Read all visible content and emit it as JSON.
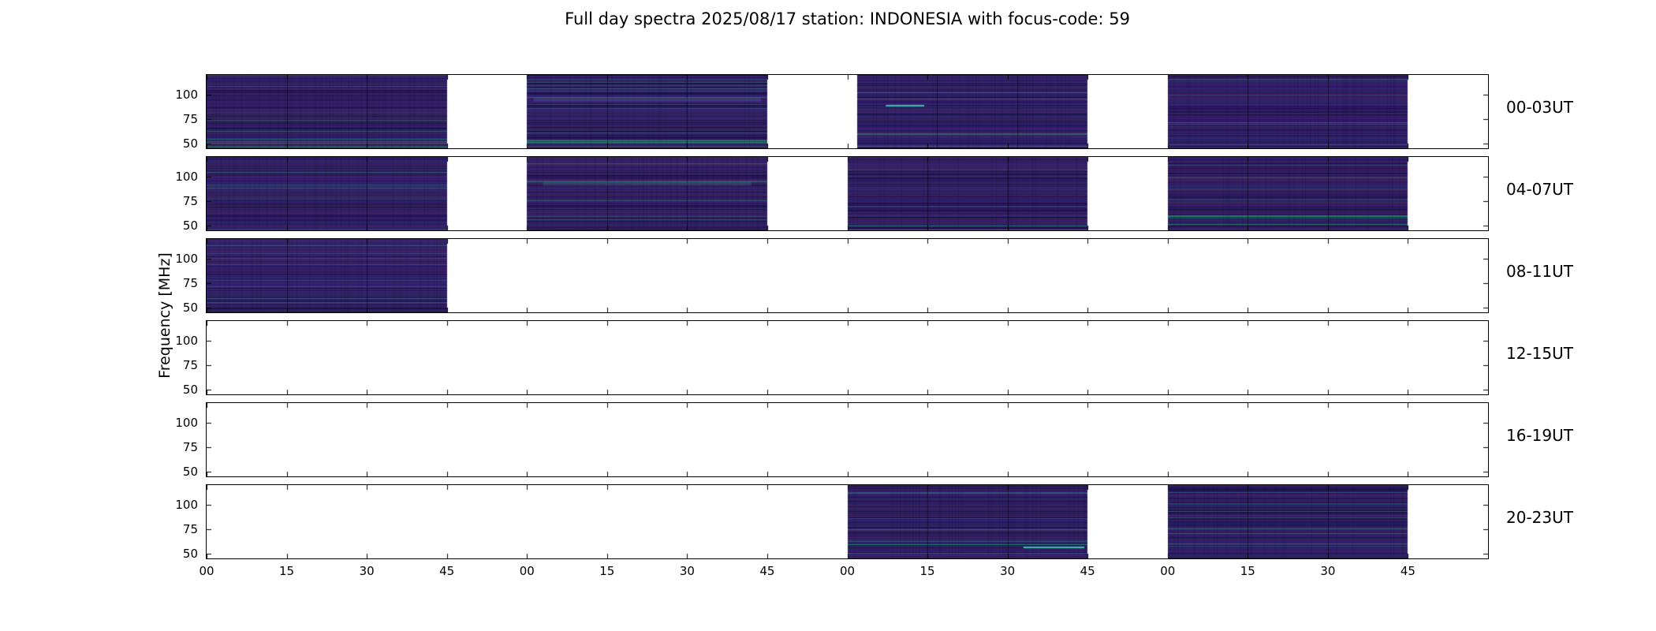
{
  "title": "Full day spectra 2025/08/17 station: INDONESIA with focus-code: 59",
  "ylabel": "Frequency [MHz]",
  "axes": {
    "xticks": [
      "00",
      "15",
      "30",
      "45"
    ],
    "yticks": [
      100,
      75,
      50
    ],
    "ylim": [
      45,
      120
    ],
    "hour_groups_per_row": 4
  },
  "rows": [
    {
      "label": "00-03UT",
      "segments": [
        [
          0,
          0.75
        ],
        [
          1,
          1.75
        ],
        [
          2.03,
          2.75
        ],
        [
          3,
          3.75
        ]
      ],
      "streaks": [
        [
          2.12,
          2.24,
          0.42
        ]
      ],
      "bands": [
        [
          1.02,
          1.73,
          0.33
        ]
      ]
    },
    {
      "label": "04-07UT",
      "segments": [
        [
          0,
          0.75
        ],
        [
          1,
          1.75
        ],
        [
          2,
          2.75
        ],
        [
          3,
          3.75
        ]
      ],
      "streaks": [],
      "bands": [
        [
          1.05,
          1.7,
          0.36
        ]
      ]
    },
    {
      "label": "08-11UT",
      "segments": [
        [
          0,
          0.75
        ]
      ],
      "streaks": [],
      "bands": []
    },
    {
      "label": "12-15UT",
      "segments": [],
      "streaks": [],
      "bands": []
    },
    {
      "label": "16-19UT",
      "segments": [],
      "streaks": [],
      "bands": []
    },
    {
      "label": "20-23UT",
      "segments": [
        [
          2,
          2.75
        ],
        [
          3,
          3.75
        ]
      ],
      "streaks": [
        [
          2.55,
          2.74,
          0.85
        ]
      ],
      "bands": []
    }
  ],
  "colors": {
    "background": "#ffffff",
    "axis": "#000000",
    "spectra_base": "#2d1e5e",
    "spectra_streak": "#3fc0ae"
  },
  "chart_data": {
    "type": "heatmap",
    "title": "Full day spectra 2025/08/17 station: INDONESIA with focus-code: 59",
    "ylabel": "Frequency [MHz]",
    "x_tick_labels_per_hour": [
      "00",
      "15",
      "30",
      "45"
    ],
    "y_tick_labels": [
      100,
      75,
      50
    ],
    "y_range_mhz": [
      45,
      120
    ],
    "hours_per_row_panel": 4,
    "row_panels": [
      {
        "time_range": "00-03UT",
        "hours_with_data": [
          0,
          1,
          2,
          3
        ],
        "data_minutes_per_hour": [
          0,
          45
        ]
      },
      {
        "time_range": "04-07UT",
        "hours_with_data": [
          4,
          5,
          6,
          7
        ],
        "data_minutes_per_hour": [
          0,
          45
        ]
      },
      {
        "time_range": "08-11UT",
        "hours_with_data": [
          8
        ],
        "data_minutes_per_hour": [
          0,
          45
        ]
      },
      {
        "time_range": "12-15UT",
        "hours_with_data": [],
        "data_minutes_per_hour": null
      },
      {
        "time_range": "16-19UT",
        "hours_with_data": [],
        "data_minutes_per_hour": null
      },
      {
        "time_range": "20-23UT",
        "hours_with_data": [
          22,
          23
        ],
        "data_minutes_per_hour": [
          0,
          45
        ]
      }
    ],
    "notable_features": [
      "bright teal emission streak near 90 MHz around 02:10-02:15 UT",
      "bright teal emission streak near 50 MHz around 22:33-22:45 UT",
      "faint lighter horizontal band near 95 MHz during 01:00-01:45 UT and 05:00-05:45 UT"
    ],
    "colormap": "viridis, dominated by dark purple background noise",
    "grid": false,
    "legend": false
  }
}
